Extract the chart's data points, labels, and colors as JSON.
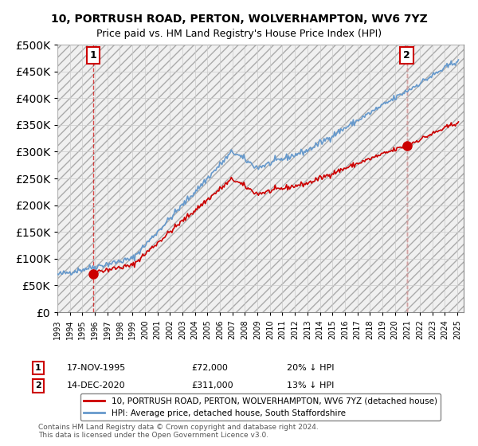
{
  "title": "10, PORTRUSH ROAD, PERTON, WOLVERHAMPTON, WV6 7YZ",
  "subtitle": "Price paid vs. HM Land Registry's House Price Index (HPI)",
  "legend_line1": "10, PORTRUSH ROAD, PERTON, WOLVERHAMPTON, WV6 7YZ (detached house)",
  "legend_line2": "HPI: Average price, detached house, South Staffordshire",
  "note1_num": "1",
  "note1_date": "17-NOV-1995",
  "note1_price": "£72,000",
  "note1_hpi": "20% ↓ HPI",
  "note2_num": "2",
  "note2_date": "14-DEC-2020",
  "note2_price": "£311,000",
  "note2_hpi": "13% ↓ HPI",
  "copyright": "Contains HM Land Registry data © Crown copyright and database right 2024.\nThis data is licensed under the Open Government Licence v3.0.",
  "sale1_year": 1995.88,
  "sale1_price": 72000,
  "sale2_year": 2020.95,
  "sale2_price": 311000,
  "hpi_color": "#6699cc",
  "sale_color": "#cc0000",
  "hatch_color": "#cccccc",
  "grid_color": "#cccccc",
  "background_color": "#ffffff",
  "ylim_min": 0,
  "ylim_max": 500000,
  "xlim_min": 1993,
  "xlim_max": 2025.5,
  "ytick_step": 50000
}
